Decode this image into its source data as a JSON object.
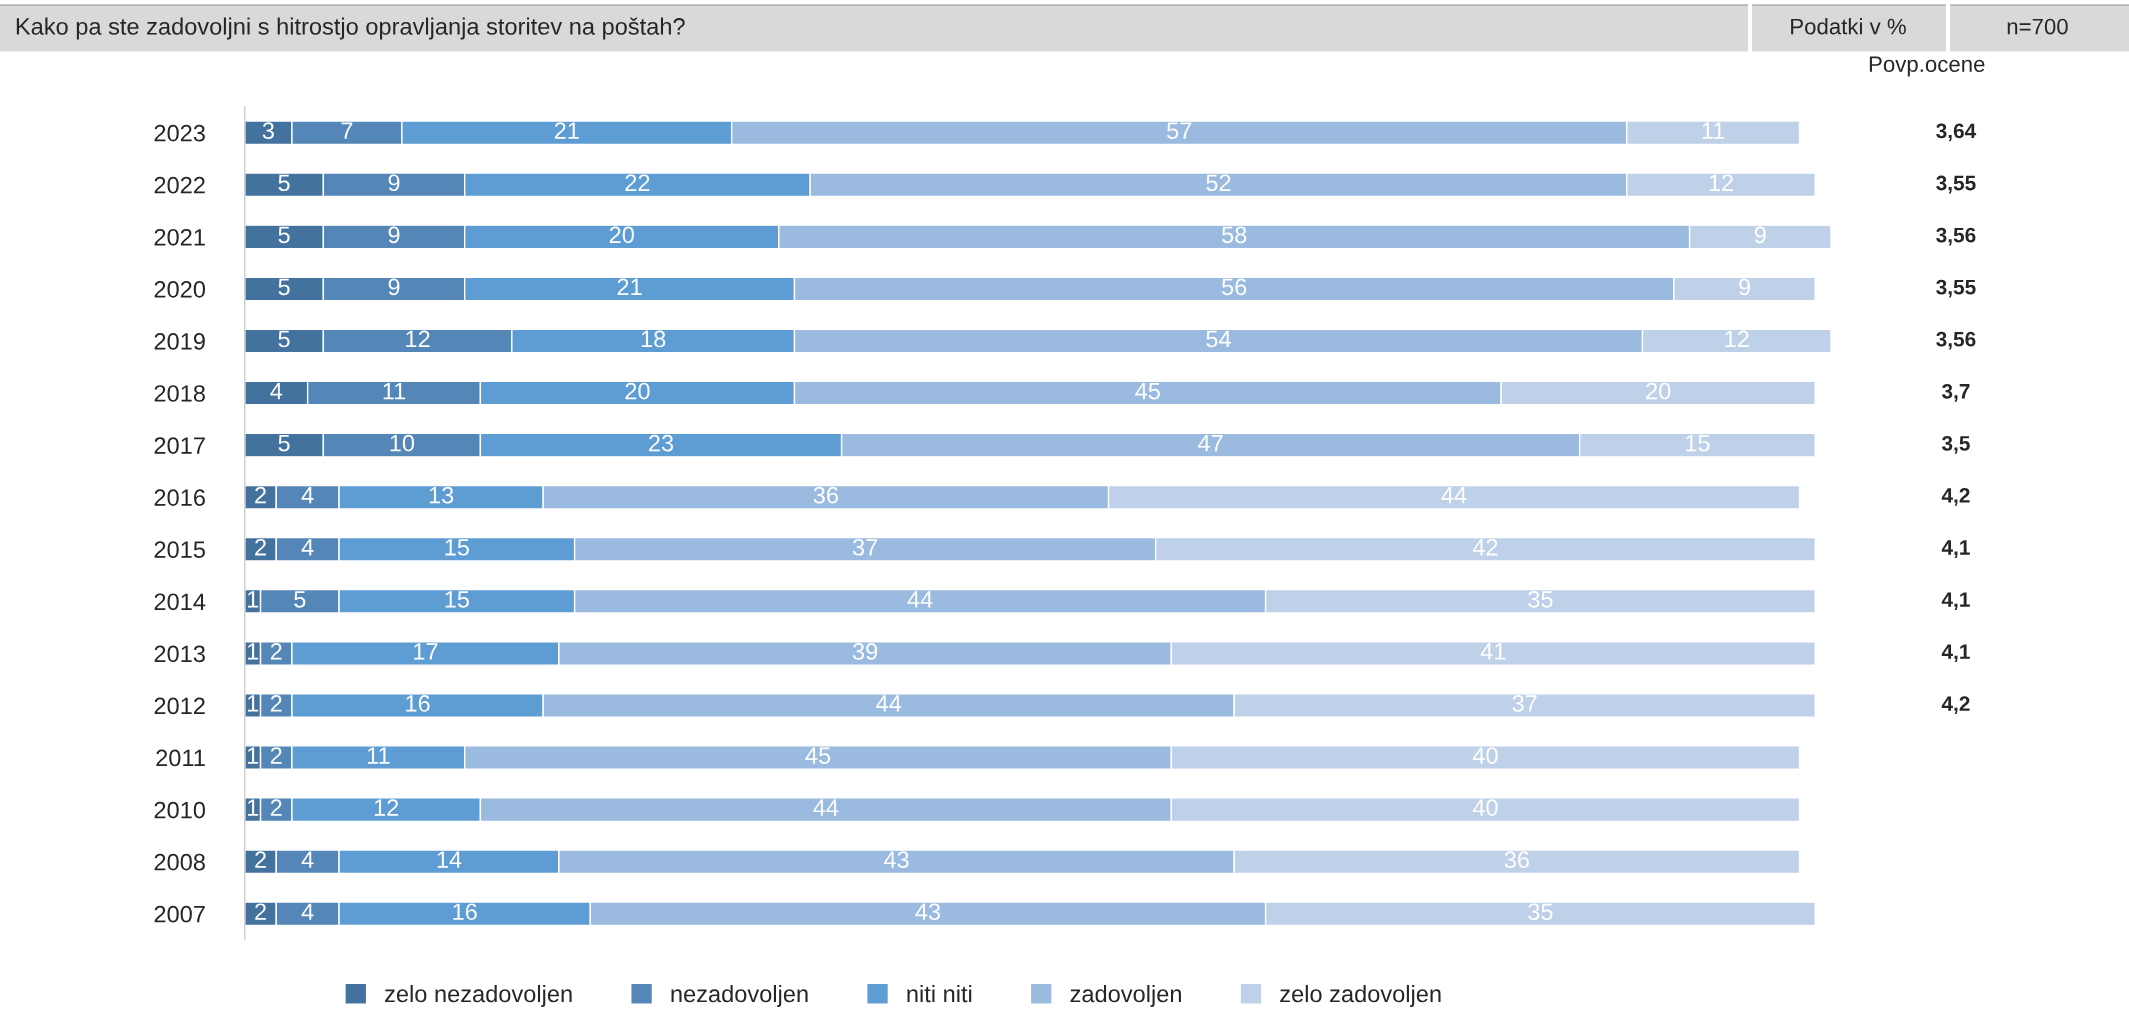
{
  "chart_data": {
    "type": "bar",
    "orientation": "horizontal",
    "stacked": true,
    "data_labels": true,
    "grid": false,
    "legend": "bottom",
    "title": "Kako pa ste zadovoljni s hitrostjo opravljanja storitev na poštah?",
    "categories": [
      "2023",
      "2022",
      "2021",
      "2020",
      "2019",
      "2018",
      "2017",
      "2016",
      "2015",
      "2014",
      "2013",
      "2012",
      "2011",
      "2010",
      "2008",
      "2007"
    ],
    "series": [
      {
        "name": "zelo nezadovoljen",
        "color": "#44729f",
        "values": [
          3,
          5,
          5,
          5,
          5,
          4,
          5,
          2,
          2,
          1,
          1,
          1,
          1,
          1,
          2,
          2
        ]
      },
      {
        "name": "nezadovoljen",
        "color": "#5486b8",
        "values": [
          7,
          9,
          9,
          9,
          12,
          11,
          10,
          4,
          4,
          5,
          2,
          2,
          2,
          2,
          4,
          4
        ]
      },
      {
        "name": "niti niti",
        "color": "#5e9dd4",
        "values": [
          21,
          22,
          20,
          21,
          18,
          20,
          23,
          13,
          15,
          15,
          17,
          16,
          11,
          12,
          14,
          16
        ]
      },
      {
        "name": "zadovoljen",
        "color": "#9bbadf",
        "values": [
          57,
          52,
          58,
          56,
          54,
          45,
          47,
          36,
          37,
          44,
          39,
          44,
          45,
          44,
          43,
          43
        ]
      },
      {
        "name": "zelo zadovoljen",
        "color": "#bfd1e8",
        "values": [
          11,
          12,
          9,
          9,
          12,
          20,
          15,
          44,
          42,
          35,
          41,
          37,
          40,
          40,
          36,
          35
        ]
      }
    ],
    "annotations": [
      "Podatki v %",
      "n=700",
      "Povp.ocene",
      "3,64",
      "3,55",
      "3,56",
      "3,55",
      "3,56",
      "3,7",
      "3,5",
      "4,2",
      "4,1",
      "4,1",
      "4,1",
      "4,2"
    ]
  }
}
